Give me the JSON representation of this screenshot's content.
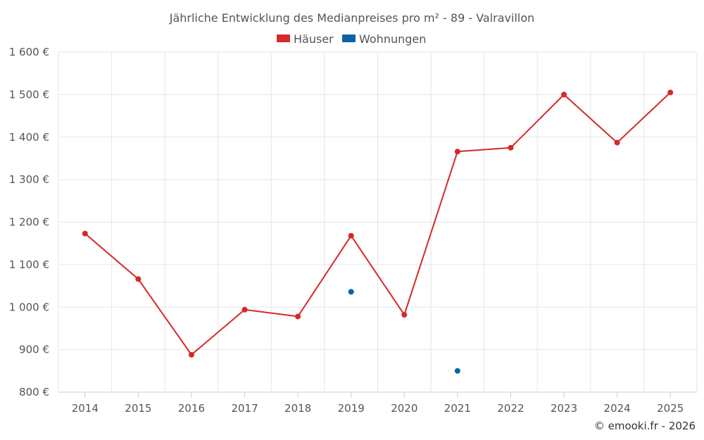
{
  "chart_data": {
    "type": "line",
    "title": "Jährliche Entwicklung des Medianpreises pro m² - 89 - Valravillon",
    "categories": [
      "2014",
      "2015",
      "2016",
      "2017",
      "2018",
      "2019",
      "2020",
      "2021",
      "2022",
      "2023",
      "2024",
      "2025"
    ],
    "series": [
      {
        "name": "Häuser",
        "color": "#d32a2a",
        "values": [
          1173,
          1066,
          888,
          994,
          978,
          1168,
          982,
          1366,
          1375,
          1500,
          1387,
          1505
        ]
      },
      {
        "name": "Wohnungen",
        "color": "#0b62a4",
        "values": [
          null,
          null,
          null,
          null,
          null,
          1036,
          null,
          850,
          null,
          null,
          null,
          null
        ]
      }
    ],
    "ylim": [
      800,
      1600
    ],
    "yticks": [
      800,
      900,
      1000,
      1100,
      1200,
      1300,
      1400,
      1500,
      1600
    ],
    "ytick_labels": [
      "800 €",
      "900 €",
      "1 000 €",
      "1 100 €",
      "1 200 €",
      "1 300 €",
      "1 400 €",
      "1 500 €",
      "1 600 €"
    ],
    "xlabel": "",
    "ylabel": "",
    "grid": true,
    "legend_position": "top-center"
  },
  "credit": "© emooki.fr - 2026"
}
